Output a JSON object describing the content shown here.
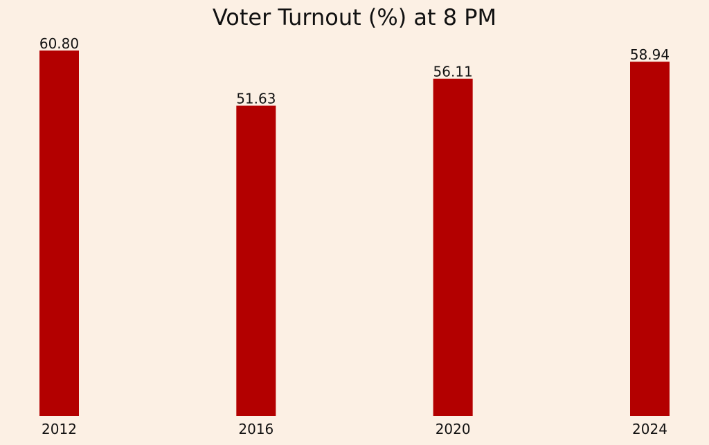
{
  "chart_data": {
    "type": "bar",
    "title": "Voter Turnout (%) at 8 PM",
    "xlabel": "",
    "ylabel": "",
    "categories": [
      "2012",
      "2016",
      "2020",
      "2024"
    ],
    "values": [
      60.8,
      51.63,
      56.11,
      58.94
    ],
    "value_labels": [
      "60.80",
      "51.63",
      "56.11",
      "58.94"
    ],
    "ylim": [
      0,
      60.8
    ],
    "grid": false,
    "legend": "none",
    "bar_color": "#b30000",
    "background_color": "#fcf0e4"
  }
}
